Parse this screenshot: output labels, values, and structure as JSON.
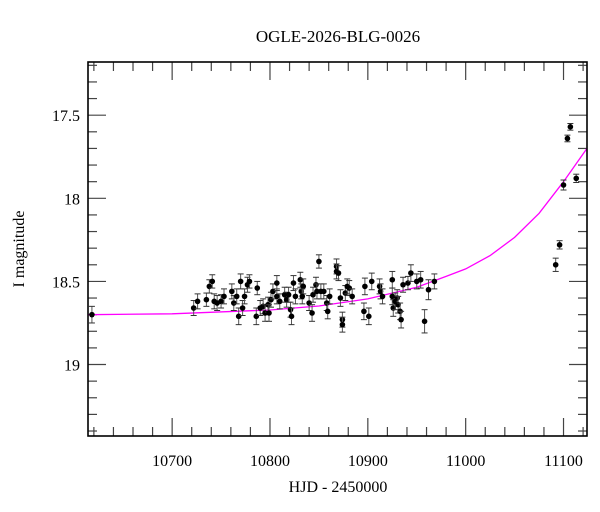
{
  "chart_data": {
    "type": "scatter",
    "title": "OGLE-2026-BLG-0026",
    "xlabel": "HJD - 2450000",
    "ylabel": "I magnitude",
    "xlim": [
      10614,
      11124
    ],
    "ylim": [
      19.43,
      17.18
    ],
    "y_inverted": true,
    "x_ticks": [
      10700,
      10800,
      10900,
      11000,
      11100
    ],
    "x_tick_labels": [
      "10700",
      "10800",
      "10900",
      "11000",
      "11100"
    ],
    "y_ticks": [
      17.5,
      18,
      18.5,
      19
    ],
    "y_tick_labels": [
      "17.5",
      "18",
      "18.5",
      "19"
    ],
    "x_minor_step": 20,
    "y_minor_step": 0.1,
    "grid": false,
    "colors": {
      "data": "#000000",
      "model": "#ff00ff",
      "errorbar": "#555555"
    },
    "series": [
      {
        "kind": "points_with_errorbars",
        "points": [
          [
            10618,
            18.7,
            0.05
          ],
          [
            10722,
            18.66,
            0.045
          ],
          [
            10726,
            18.62,
            0.045
          ],
          [
            10735,
            18.61,
            0.04
          ],
          [
            10738,
            18.53,
            0.04
          ],
          [
            10741,
            18.5,
            0.04
          ],
          [
            10743,
            18.62,
            0.045
          ],
          [
            10746,
            18.63,
            0.045
          ],
          [
            10750,
            18.62,
            0.04
          ],
          [
            10753,
            18.59,
            0.045
          ],
          [
            10761,
            18.56,
            0.045
          ],
          [
            10763,
            18.63,
            0.045
          ],
          [
            10766,
            18.59,
            0.045
          ],
          [
            10768,
            18.71,
            0.05
          ],
          [
            10770,
            18.5,
            0.045
          ],
          [
            10772,
            18.66,
            0.045
          ],
          [
            10774,
            18.59,
            0.045
          ],
          [
            10777,
            18.52,
            0.045
          ],
          [
            10779,
            18.5,
            0.04
          ],
          [
            10787,
            18.54,
            0.04
          ],
          [
            10786,
            18.71,
            0.05
          ],
          [
            10790,
            18.66,
            0.045
          ],
          [
            10793,
            18.65,
            0.045
          ],
          [
            10795,
            18.69,
            0.05
          ],
          [
            10798,
            18.64,
            0.045
          ],
          [
            10799,
            18.69,
            0.05
          ],
          [
            10801,
            18.61,
            0.045
          ],
          [
            10803,
            18.56,
            0.045
          ],
          [
            10807,
            18.59,
            0.045
          ],
          [
            10807,
            18.51,
            0.045
          ],
          [
            10810,
            18.62,
            0.045
          ],
          [
            10815,
            18.58,
            0.045
          ],
          [
            10817,
            18.61,
            0.045
          ],
          [
            10819,
            18.58,
            0.045
          ],
          [
            10821,
            18.67,
            0.045
          ],
          [
            10822,
            18.71,
            0.05
          ],
          [
            10824,
            18.51,
            0.045
          ],
          [
            10826,
            18.59,
            0.045
          ],
          [
            10831,
            18.49,
            0.045
          ],
          [
            10832,
            18.56,
            0.045
          ],
          [
            10834,
            18.53,
            0.045
          ],
          [
            10833,
            18.59,
            0.045
          ],
          [
            10840,
            18.63,
            0.045
          ],
          [
            10843,
            18.69,
            0.05
          ],
          [
            10844,
            18.58,
            0.045
          ],
          [
            10847,
            18.52,
            0.045
          ],
          [
            10850,
            18.38,
            0.04
          ],
          [
            10848,
            18.56,
            0.045
          ],
          [
            10852,
            18.56,
            0.045
          ],
          [
            10855,
            18.56,
            0.045
          ],
          [
            10858,
            18.63,
            0.045
          ],
          [
            10859,
            18.68,
            0.045
          ],
          [
            10861,
            18.59,
            0.045
          ],
          [
            10868,
            18.41,
            0.045
          ],
          [
            10868,
            18.44,
            0.045
          ],
          [
            10870,
            18.45,
            0.045
          ],
          [
            10872,
            18.6,
            0.05
          ],
          [
            10874,
            18.73,
            0.045
          ],
          [
            10874,
            18.76,
            0.045
          ],
          [
            10877,
            18.57,
            0.045
          ],
          [
            10879,
            18.53,
            0.045
          ],
          [
            10881,
            18.54,
            0.045
          ],
          [
            10884,
            18.59,
            0.045
          ],
          [
            10896,
            18.68,
            0.05
          ],
          [
            10897,
            18.53,
            0.05
          ],
          [
            10901,
            18.71,
            0.05
          ],
          [
            10904,
            18.5,
            0.05
          ],
          [
            10912,
            18.53,
            0.045
          ],
          [
            10913,
            18.56,
            0.045
          ],
          [
            10915,
            18.59,
            0.045
          ],
          [
            10925,
            18.49,
            0.05
          ],
          [
            10925,
            18.59,
            0.05
          ],
          [
            10926,
            18.66,
            0.05
          ],
          [
            10928,
            18.62,
            0.05
          ],
          [
            10930,
            18.6,
            0.05
          ],
          [
            10931,
            18.64,
            0.05
          ],
          [
            10933,
            18.68,
            0.05
          ],
          [
            10934,
            18.73,
            0.05
          ],
          [
            10936,
            18.52,
            0.045
          ],
          [
            10941,
            18.51,
            0.04
          ],
          [
            10944,
            18.45,
            0.05
          ],
          [
            10950,
            18.5,
            0.045
          ],
          [
            10954,
            18.49,
            0.05
          ],
          [
            10958,
            18.74,
            0.07
          ],
          [
            10962,
            18.55,
            0.06
          ],
          [
            10968,
            18.5,
            0.045
          ],
          [
            11092,
            18.4,
            0.04
          ],
          [
            11096,
            18.28,
            0.025
          ],
          [
            11100,
            17.92,
            0.03
          ],
          [
            11104,
            17.64,
            0.02
          ],
          [
            11107,
            17.57,
            0.02
          ],
          [
            11113,
            17.88,
            0.025
          ]
        ]
      },
      {
        "kind": "model_curve",
        "points": [
          [
            10614,
            18.7
          ],
          [
            10700,
            18.695
          ],
          [
            10800,
            18.672
          ],
          [
            10850,
            18.648
          ],
          [
            10900,
            18.605
          ],
          [
            10950,
            18.535
          ],
          [
            10980,
            18.47
          ],
          [
            11000,
            18.425
          ],
          [
            11025,
            18.345
          ],
          [
            11050,
            18.235
          ],
          [
            11075,
            18.09
          ],
          [
            11100,
            17.9
          ],
          [
            11124,
            17.7
          ]
        ]
      }
    ]
  }
}
